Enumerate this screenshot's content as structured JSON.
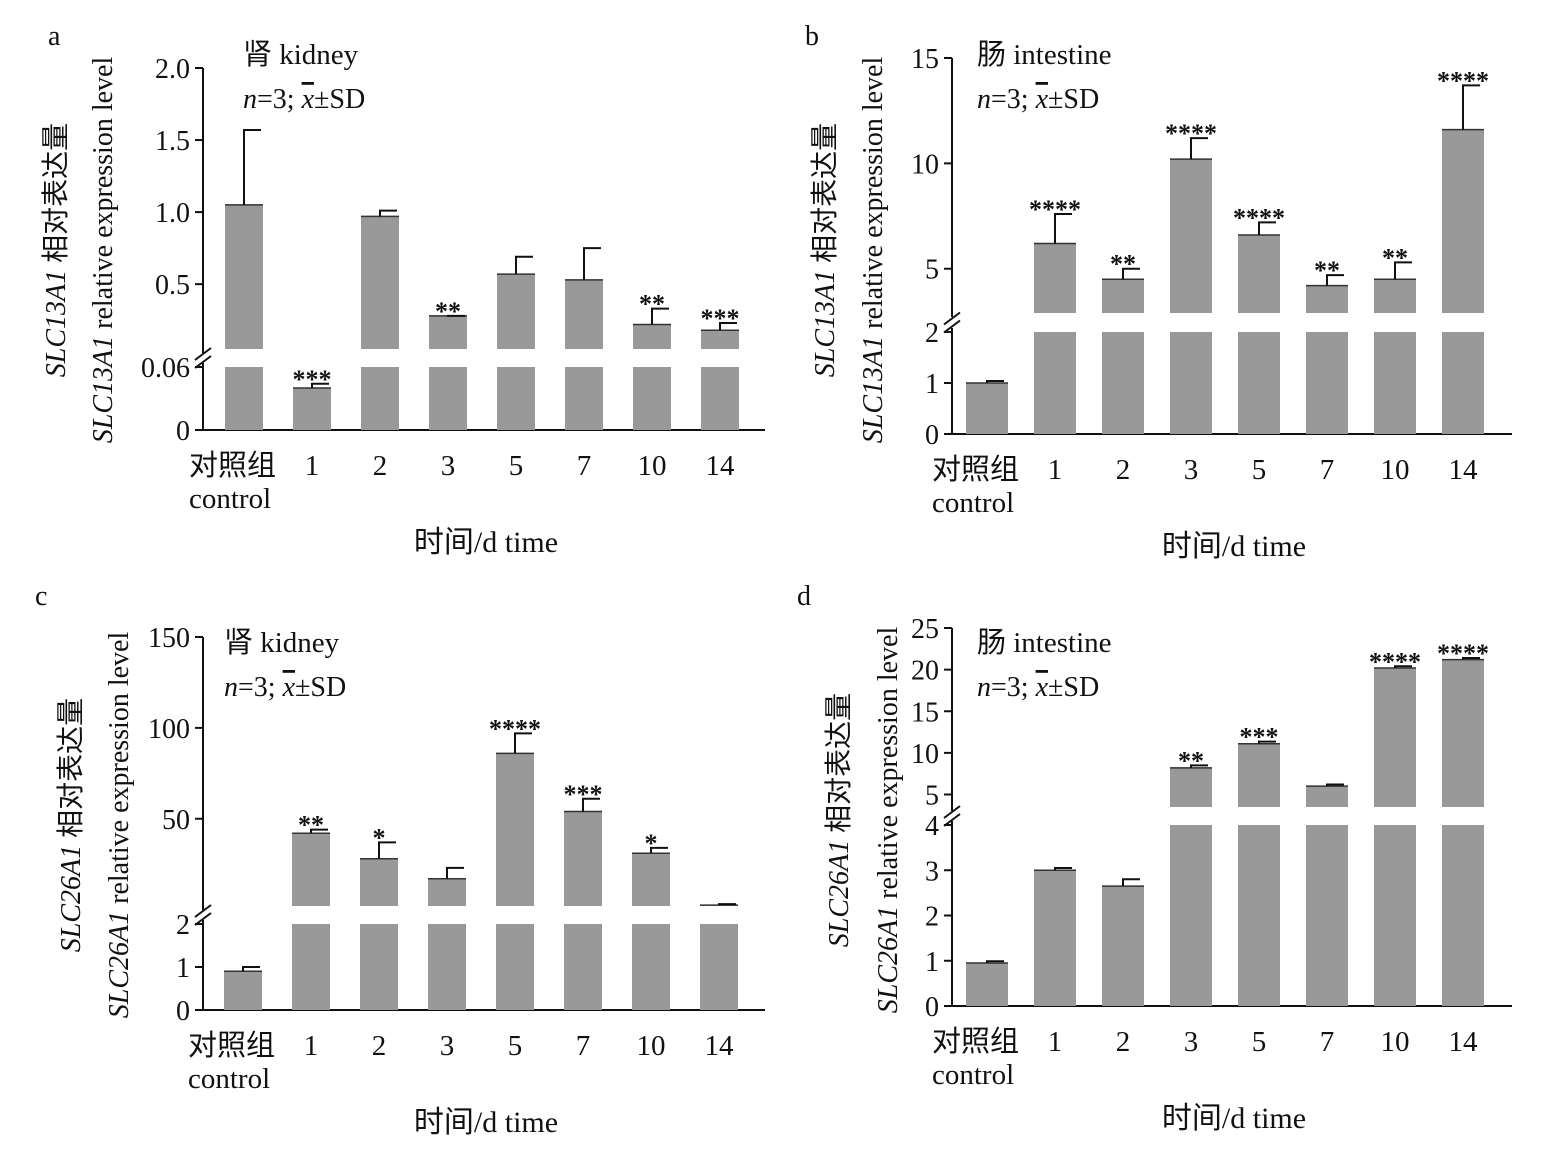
{
  "figure": {
    "panels": [
      "a",
      "b",
      "c",
      "d"
    ]
  },
  "chart_data": [
    {
      "type": "bar",
      "panel": "a",
      "title": "肾 kidney",
      "stat_note": {
        "n": "n",
        "rest": "=3; ",
        "xbar": "x",
        "tail": "±SD"
      },
      "xlabel": "时间/d time",
      "ylabel": {
        "gene": "SLC13A1",
        "zh": " 相对表达量",
        "en_gene": "SLC13A1",
        "en": " relative expression level"
      },
      "categories": [
        {
          "l1": "对照组",
          "l2": "control"
        },
        {
          "l1": "1"
        },
        {
          "l1": "2"
        },
        {
          "l1": "3"
        },
        {
          "l1": "5"
        },
        {
          "l1": "7"
        },
        {
          "l1": "10"
        },
        {
          "l1": "14"
        }
      ],
      "values": [
        1.05,
        0.04,
        0.97,
        0.28,
        0.57,
        0.53,
        0.22,
        0.18
      ],
      "errors": [
        0.52,
        0.004,
        0.04,
        0.0,
        0.12,
        0.22,
        0.11,
        0.05
      ],
      "significance": [
        "",
        "***",
        "",
        "**",
        "",
        "",
        "**",
        "***"
      ],
      "axis_break": true,
      "lower_ticks": [
        "0",
        "0.06"
      ],
      "upper_ticks": [
        "0.5",
        "1.0",
        "1.5",
        "2.0"
      ],
      "ylim_lower": [
        0,
        0.06
      ],
      "ylim_upper": [
        0.05,
        2.0
      ],
      "bar_color": "#999999"
    },
    {
      "type": "bar",
      "panel": "b",
      "title": "肠 intestine",
      "stat_note": {
        "n": "n",
        "rest": "=3; ",
        "xbar": "x",
        "tail": "±SD"
      },
      "xlabel": "时间/d time",
      "ylabel": {
        "gene": "SLC13A1",
        "zh": " 相对表达量",
        "en_gene": "SLC13A1",
        "en": " relative expression level"
      },
      "categories": [
        {
          "l1": "对照组",
          "l2": "control"
        },
        {
          "l1": "1"
        },
        {
          "l1": "2"
        },
        {
          "l1": "3"
        },
        {
          "l1": "5"
        },
        {
          "l1": "7"
        },
        {
          "l1": "10"
        },
        {
          "l1": "14"
        }
      ],
      "values": [
        1.0,
        6.2,
        4.5,
        10.2,
        6.6,
        4.2,
        4.5,
        11.6
      ],
      "errors": [
        0.04,
        1.4,
        0.5,
        1.0,
        0.6,
        0.5,
        0.8,
        2.1
      ],
      "significance": [
        "",
        "****",
        "**",
        "****",
        "****",
        "**",
        "**",
        "****"
      ],
      "axis_break": true,
      "lower_ticks": [
        "0",
        "1",
        "2"
      ],
      "upper_ticks": [
        "5",
        "10",
        "15"
      ],
      "ylim_lower": [
        0,
        2
      ],
      "ylim_upper": [
        2.9,
        15
      ],
      "bar_color": "#999999"
    },
    {
      "type": "bar",
      "panel": "c",
      "title": "肾 kidney",
      "stat_note": {
        "n": "n",
        "rest": "=3; ",
        "xbar": "x",
        "tail": "±SD"
      },
      "xlabel": "时间/d time",
      "ylabel": {
        "gene": "SLC26A1",
        "zh": " 相对表达量",
        "en_gene": "SLC26A1",
        "en": " relative expression level"
      },
      "categories": [
        {
          "l1": "对照组",
          "l2": "control"
        },
        {
          "l1": "1"
        },
        {
          "l1": "2"
        },
        {
          "l1": "3"
        },
        {
          "l1": "5"
        },
        {
          "l1": "7"
        },
        {
          "l1": "10"
        },
        {
          "l1": "14"
        }
      ],
      "values": [
        0.9,
        42,
        28,
        17,
        86,
        54,
        31,
        2.5
      ],
      "errors": [
        0.1,
        2,
        9,
        6,
        11,
        7,
        3,
        0.5
      ],
      "significance": [
        "",
        "**",
        "*",
        "",
        "****",
        "***",
        "*",
        ""
      ],
      "axis_break": true,
      "lower_ticks": [
        "0",
        "1",
        "2"
      ],
      "upper_ticks": [
        "50",
        "100",
        "150"
      ],
      "ylim_lower": [
        0,
        2
      ],
      "ylim_upper": [
        2,
        150
      ],
      "bar_color": "#999999"
    },
    {
      "type": "bar",
      "panel": "d",
      "title": "肠 intestine",
      "stat_note": {
        "n": "n",
        "rest": "=3; ",
        "xbar": "x",
        "tail": "±SD"
      },
      "xlabel": "时间/d time",
      "ylabel": {
        "gene": "SLC26A1",
        "zh": " 相对表达量",
        "en_gene": "SLC26A1",
        "en": " relative expression level"
      },
      "categories": [
        {
          "l1": "对照组",
          "l2": "control"
        },
        {
          "l1": "1"
        },
        {
          "l1": "2"
        },
        {
          "l1": "3"
        },
        {
          "l1": "5"
        },
        {
          "l1": "7"
        },
        {
          "l1": "10"
        },
        {
          "l1": "14"
        }
      ],
      "values": [
        0.95,
        3.0,
        2.65,
        8.2,
        11.1,
        6.0,
        20.2,
        21.2
      ],
      "errors": [
        0.04,
        0.05,
        0.15,
        0.3,
        0.25,
        0.2,
        0.2,
        0.2
      ],
      "significance": [
        "",
        "",
        "",
        "**",
        "***",
        "",
        "****",
        "****"
      ],
      "axis_break": true,
      "lower_ticks": [
        "0",
        "1",
        "2",
        "3",
        "4"
      ],
      "upper_ticks": [
        "5",
        "10",
        "15",
        "20",
        "25"
      ],
      "ylim_lower": [
        0,
        4
      ],
      "ylim_upper": [
        3.5,
        25
      ],
      "bar_color": "#999999"
    }
  ]
}
